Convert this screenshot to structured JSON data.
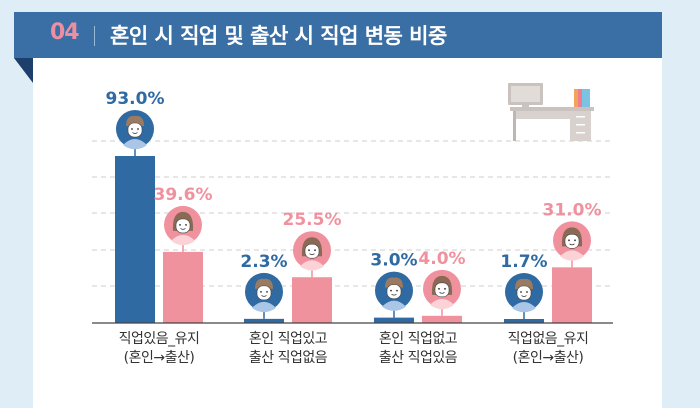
{
  "header": {
    "number": "04",
    "title": "혼인 시 직업 및 출산 시 직업 변동 비중"
  },
  "colors": {
    "male": "#2f6aa3",
    "female": "#f0919e",
    "header_bg": "#3a6fa5",
    "number": "#ee8ea0"
  },
  "chart_data": {
    "type": "bar",
    "title": "혼인 시 직업 및 출산 시 직업 변동 비중",
    "categories": [
      [
        "직업있음_유지",
        "(혼인→출산)"
      ],
      [
        "혼인 직업있고",
        "출산 직업없음"
      ],
      [
        "혼인 직업없고",
        "출산 직업있음"
      ],
      [
        "직업없음_유지",
        "(혼인→출산)"
      ]
    ],
    "series": [
      {
        "name": "남편",
        "icon": "male-avatar-icon",
        "values": [
          93.0,
          2.3,
          3.0,
          1.7
        ],
        "labels": [
          "93.0%",
          "2.3%",
          "3.0%",
          "1.7%"
        ]
      },
      {
        "name": "아내",
        "icon": "female-avatar-icon",
        "values": [
          39.6,
          25.5,
          4.0,
          31.0
        ],
        "labels": [
          "39.6%",
          "25.5%",
          "4.0%",
          "31.0%"
        ]
      }
    ],
    "unit": "%",
    "ylim": [
      0,
      100
    ],
    "grid": true,
    "legend": "none",
    "decoration": "office-desk-icon"
  }
}
